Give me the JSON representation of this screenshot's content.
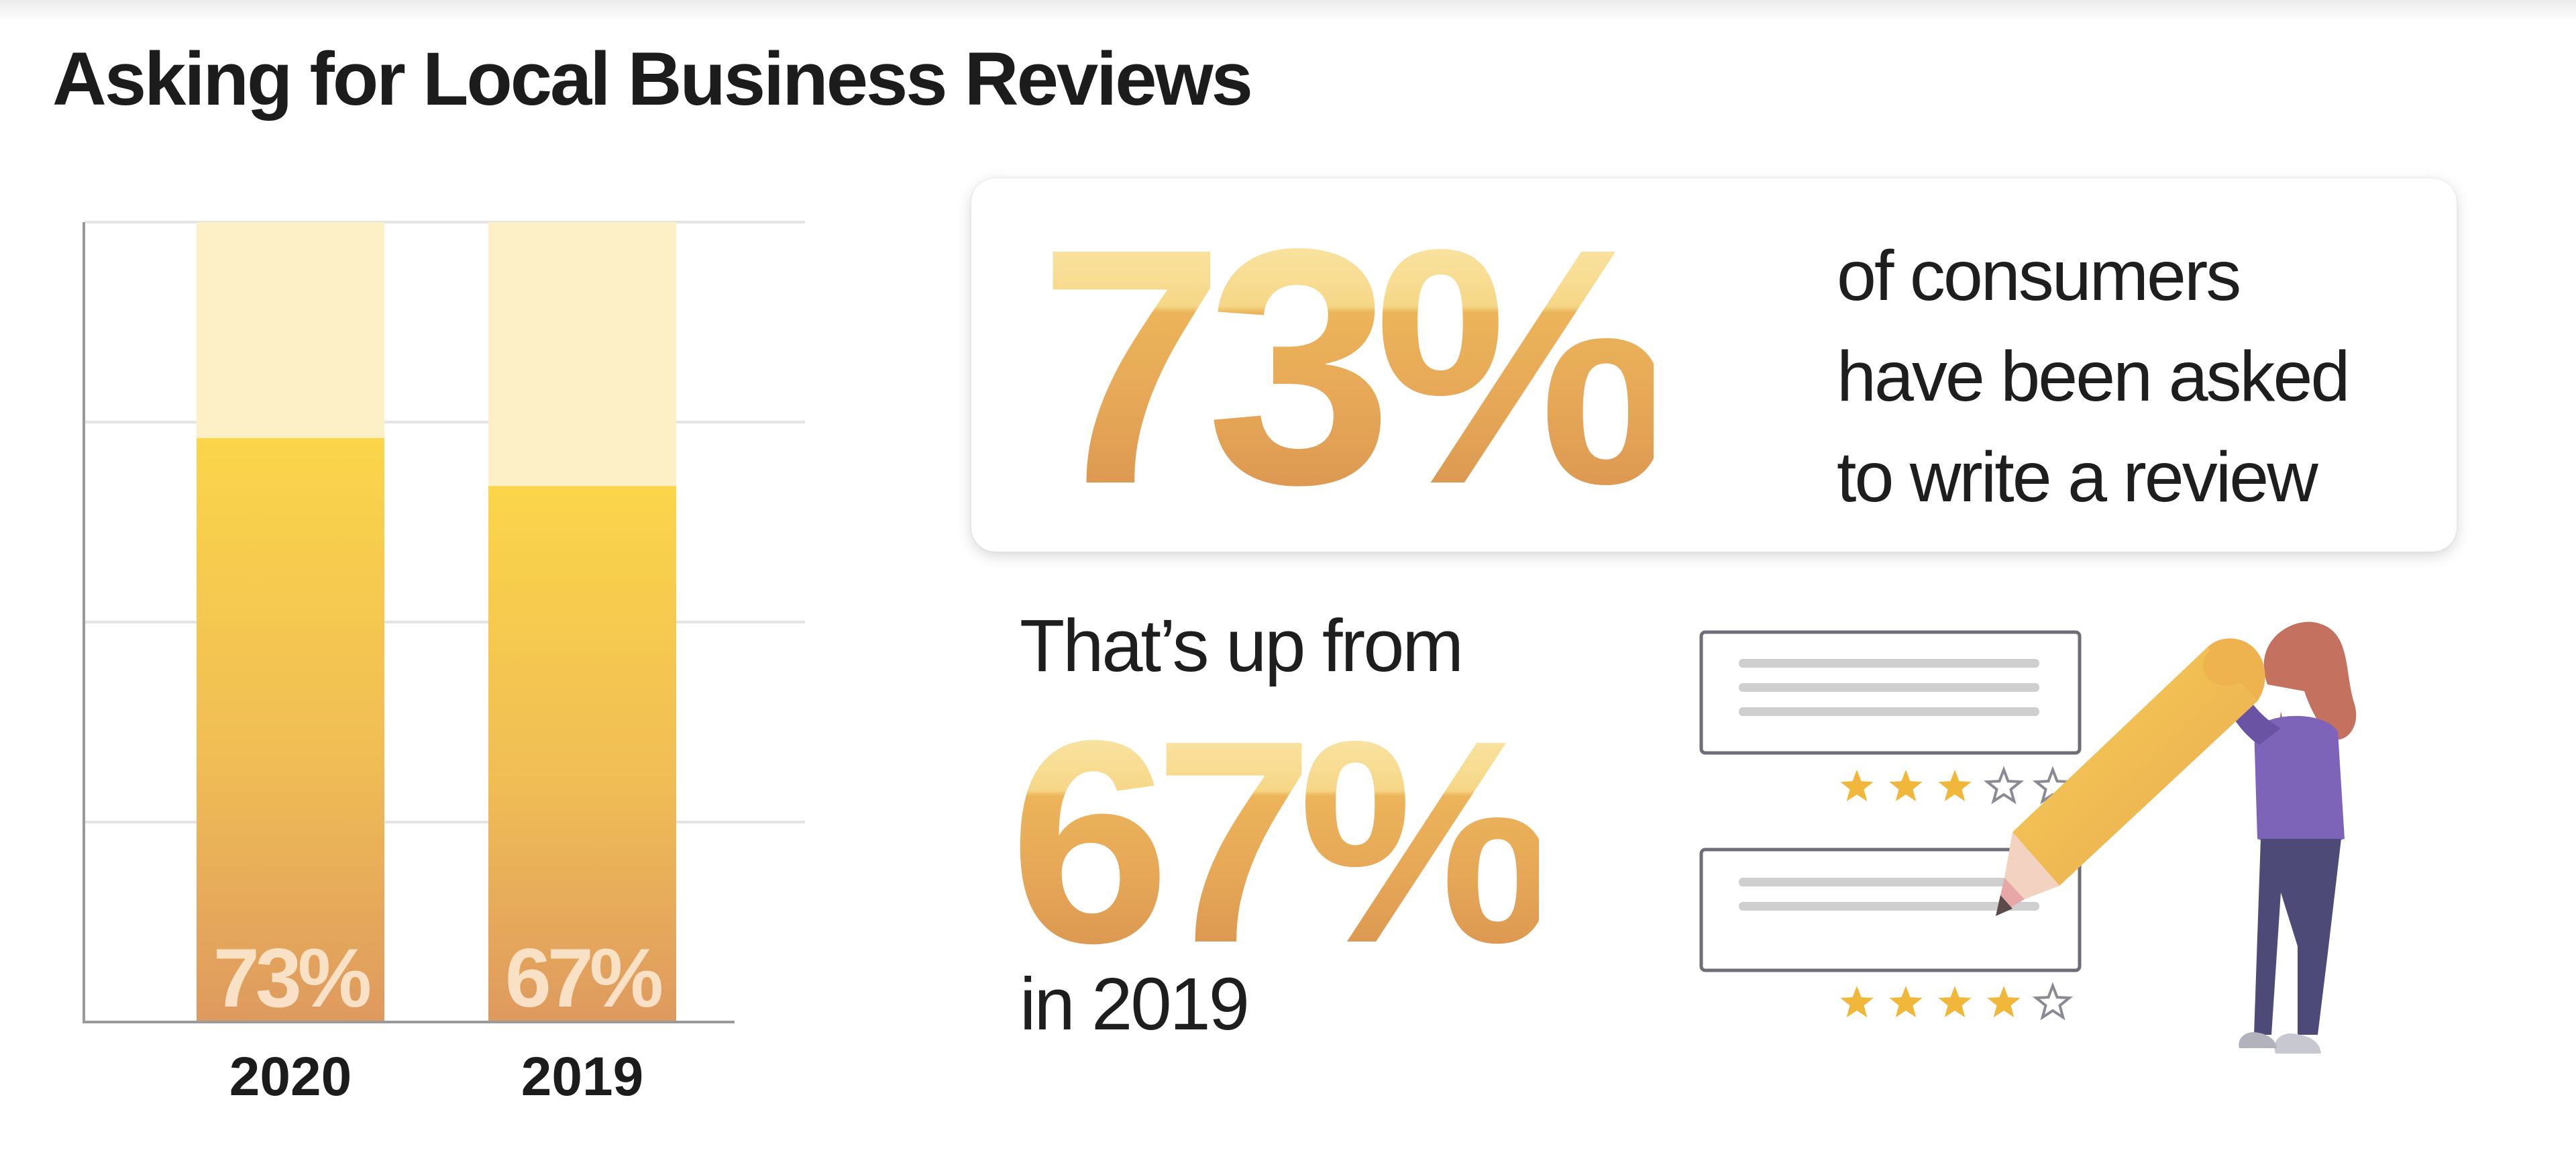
{
  "title": "Asking for Local Business Reviews",
  "chart_data": {
    "type": "bar",
    "categories": [
      "2020",
      "2019"
    ],
    "values": [
      73,
      67
    ],
    "data_labels": [
      "73%",
      "67%"
    ],
    "ylim": [
      0,
      100
    ],
    "grid": true,
    "title": "",
    "xlabel": "",
    "ylabel": ""
  },
  "stat_card": {
    "value": "73%",
    "desc_lines": [
      "of consumers",
      "have been asked",
      "to write a review"
    ]
  },
  "comparison": {
    "prefix": "That’s up from",
    "value": "67%",
    "suffix": "in 2019"
  },
  "illustration": {
    "icon": "person-writing-review-icon",
    "cards": [
      {
        "stars_filled": 3,
        "stars_total": 5
      },
      {
        "stars_filled": 4,
        "stars_total": 5
      }
    ]
  },
  "colors": {
    "bar_top": "#fbd54a",
    "bar_bottom": "#de9a5f",
    "bar_track": "#fdf0c6",
    "star_filled": "#f1b73a",
    "person_shirt": "#7d64b8",
    "person_pants": "#4d4a78",
    "person_hair": "#c4725f",
    "pencil": "#f2c450"
  }
}
